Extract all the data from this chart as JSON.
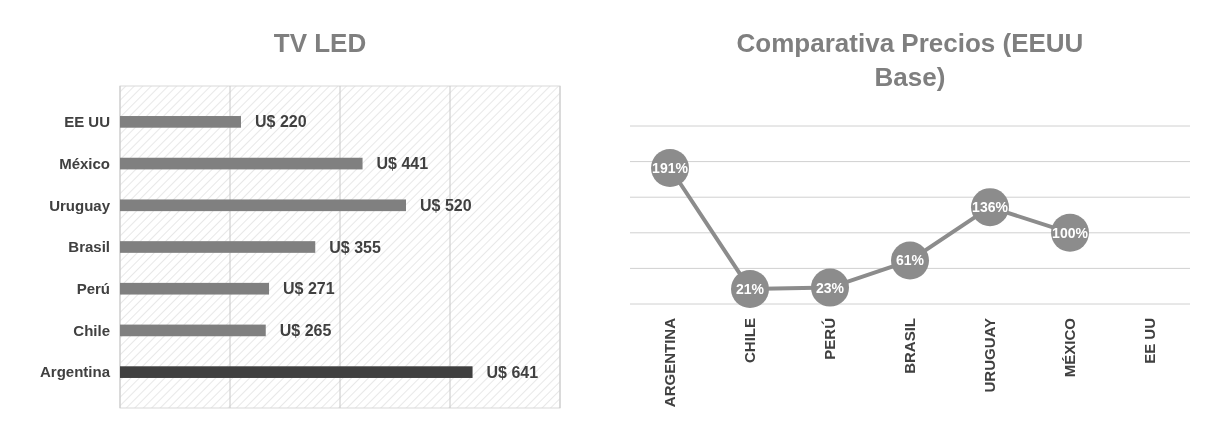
{
  "chart_data": [
    {
      "type": "bar",
      "title": "TV LED",
      "orientation": "horizontal",
      "categories": [
        "EE UU",
        "México",
        "Uruguay",
        "Brasil",
        "Perú",
        "Chile",
        "Argentina"
      ],
      "values": [
        220,
        441,
        520,
        355,
        271,
        265,
        641
      ],
      "colors": [
        "#808080",
        "#808080",
        "#808080",
        "#808080",
        "#808080",
        "#808080",
        "#404040"
      ],
      "value_labels": [
        "U$ 220",
        "U$ 441",
        "U$ 520",
        "U$ 355",
        "U$ 271",
        "U$ 265",
        "U$ 641"
      ],
      "xlim": [
        0,
        800
      ],
      "xticks": [
        {
          "value": 0,
          "label": null
        },
        {
          "value": 200,
          "label": null
        },
        {
          "value": 400,
          "label": null
        },
        {
          "value": 600,
          "label": null
        },
        {
          "value": 800,
          "label": null
        }
      ],
      "grid": "x",
      "tick_labels": "y"
    },
    {
      "type": "line",
      "title": "Comparativa Precios (EEUU Base)",
      "categories": [
        "ARGENTINA",
        "CHILE",
        "PERÚ",
        "BRASIL",
        "URUGUAY",
        "MÉXICO",
        "EE UU"
      ],
      "series": [
        {
          "color": "#8c8c8c",
          "values": [
            191,
            21,
            23,
            61,
            136,
            100,
            null
          ],
          "value_labels": [
            "191%",
            "21%",
            "23%",
            "61%",
            "136%",
            "100%",
            null
          ]
        }
      ],
      "ylim": [
        0,
        250
      ],
      "yticks": [
        {
          "value": 0,
          "label": null
        },
        {
          "value": 50,
          "label": null
        },
        {
          "value": 100,
          "label": null
        },
        {
          "value": 150,
          "label": null
        },
        {
          "value": 200,
          "label": null
        },
        {
          "value": 250,
          "label": null
        }
      ],
      "grid": "y",
      "tick_labels": "x",
      "marker": "circle"
    }
  ]
}
